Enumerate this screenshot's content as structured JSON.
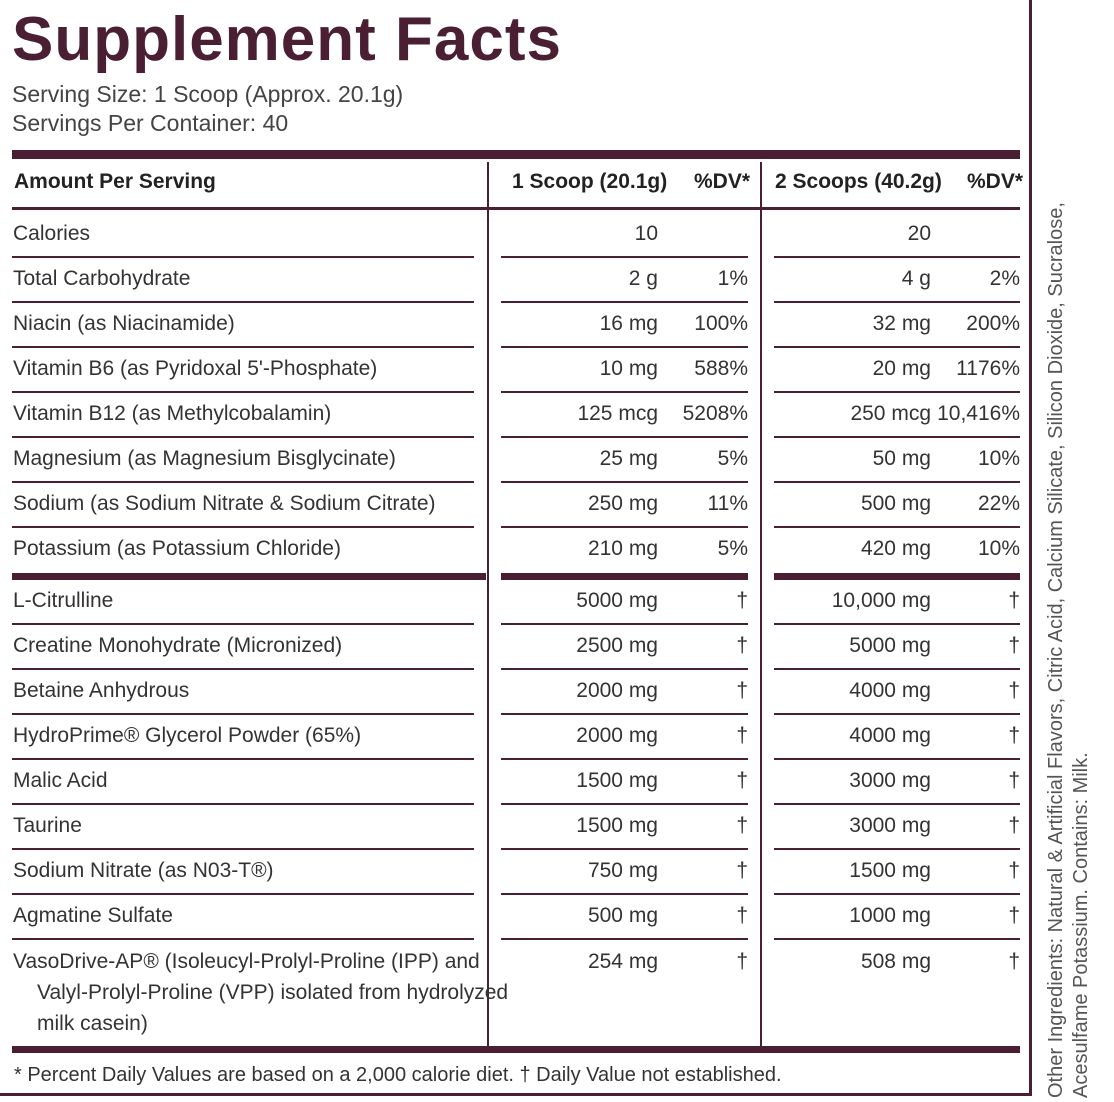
{
  "title": "Supplement Facts",
  "serving_size": "Serving Size: 1 Scoop (Approx. 20.1g)",
  "servings_per_container": "Servings Per Container: 40",
  "headers": {
    "amount": "Amount Per Serving",
    "one_scoop": "1 Scoop (20.1g)",
    "dv1": "%DV*",
    "two_scoops": "2 Scoops (40.2g)",
    "dv2": "%DV*"
  },
  "rows": [
    {
      "name": "Calories",
      "a1": "10",
      "d1": "",
      "a2": "20",
      "d2": ""
    },
    {
      "name": "Total Carbohydrate",
      "a1": "2 g",
      "d1": "1%",
      "a2": "4 g",
      "d2": "2%"
    },
    {
      "name": "Niacin (as Niacinamide)",
      "a1": "16 mg",
      "d1": "100%",
      "a2": "32 mg",
      "d2": "200%"
    },
    {
      "name": "Vitamin B6 (as Pyridoxal 5'-Phosphate)",
      "a1": "10 mg",
      "d1": "588%",
      "a2": "20 mg",
      "d2": "1176%"
    },
    {
      "name": "Vitamin B12 (as Methylcobalamin)",
      "a1": "125 mcg",
      "d1": "5208%",
      "a2": "250 mcg",
      "d2": "10,416%"
    },
    {
      "name": "Magnesium (as Magnesium Bisglycinate)",
      "a1": "25 mg",
      "d1": "5%",
      "a2": "50 mg",
      "d2": "10%"
    },
    {
      "name": "Sodium (as Sodium Nitrate & Sodium Citrate)",
      "a1": "250 mg",
      "d1": "11%",
      "a2": "500 mg",
      "d2": "22%"
    },
    {
      "name": "Potassium (as Potassium Chloride)",
      "a1": "210 mg",
      "d1": "5%",
      "a2": "420 mg",
      "d2": "10%"
    },
    {
      "name": "L-Citrulline",
      "a1": "5000 mg",
      "d1": "†",
      "a2": "10,000 mg",
      "d2": "†"
    },
    {
      "name": "Creatine Monohydrate (Micronized)",
      "a1": "2500 mg",
      "d1": "†",
      "a2": "5000 mg",
      "d2": "†"
    },
    {
      "name": "Betaine Anhydrous",
      "a1": "2000 mg",
      "d1": "†",
      "a2": "4000 mg",
      "d2": "†"
    },
    {
      "name": "HydroPrime® Glycerol Powder (65%)",
      "a1": "2000 mg",
      "d1": "†",
      "a2": "4000 mg",
      "d2": "†"
    },
    {
      "name": "Malic Acid",
      "a1": "1500 mg",
      "d1": "†",
      "a2": "3000 mg",
      "d2": "†"
    },
    {
      "name": "Taurine",
      "a1": "1500 mg",
      "d1": "†",
      "a2": "3000 mg",
      "d2": "†"
    },
    {
      "name": "Sodium Nitrate (as N03-T®)",
      "a1": "750 mg",
      "d1": "†",
      "a2": "1500 mg",
      "d2": "†"
    },
    {
      "name": "Agmatine Sulfate",
      "a1": "500 mg",
      "d1": "†",
      "a2": "1000 mg",
      "d2": "†"
    }
  ],
  "last_row": {
    "line1": "VasoDrive-AP® (Isoleucyl-Prolyl-Proline (IPP) and",
    "line2": "Valyl-Prolyl-Proline (VPP) isolated from hydrolyzed",
    "line3": "milk casein)",
    "a1": "254 mg",
    "d1": "†",
    "a2": "508 mg",
    "d2": "†"
  },
  "footer": "* Percent Daily Values are based on a 2,000 calorie diet. † Daily Value not established.",
  "other_ingredients_line1": "Other Ingredients: Natural & Artificial Flavors, Citric Acid, Calcium Silicate, Silicon Dioxide, Sucralose,",
  "other_ingredients_line2": "Acesulfame Potassium. Contains: Milk.",
  "colors": {
    "brand": "#4a1f34"
  }
}
